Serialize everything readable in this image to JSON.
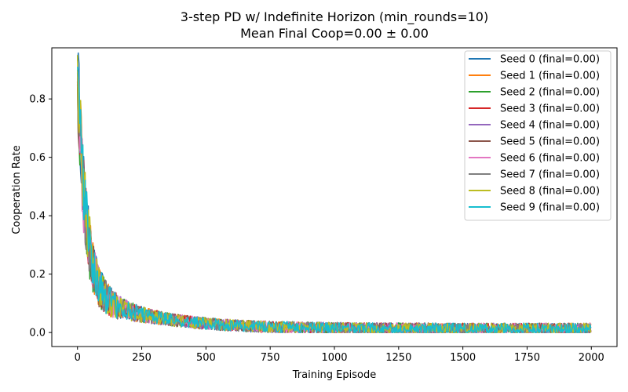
{
  "chart_data": {
    "type": "line",
    "title": "3-step PD w/ Indefinite Horizon (min_rounds=10)",
    "subtitle": "Mean Final Coop=0.00 ± 0.00",
    "xlabel": "Training Episode",
    "ylabel": "Cooperation Rate",
    "xlim": [
      -100,
      2100
    ],
    "ylim": [
      -0.048,
      0.975
    ],
    "xticks": [
      0,
      250,
      500,
      750,
      1000,
      1250,
      1500,
      1750,
      2000
    ],
    "yticks": [
      0.0,
      0.2,
      0.4,
      0.6,
      0.8
    ],
    "ytick_labels": [
      "0.0",
      "0.2",
      "0.4",
      "0.6",
      "0.8"
    ],
    "grid": false,
    "legend_position": "top-right",
    "episodes": 2000,
    "series": [
      {
        "name": "Seed 0 (final=0.00)",
        "color": "#1f77b4",
        "start": 0.93,
        "final": 0.0
      },
      {
        "name": "Seed 1 (final=0.00)",
        "color": "#ff7f0e",
        "start": 0.9,
        "final": 0.0
      },
      {
        "name": "Seed 2 (final=0.00)",
        "color": "#2ca02c",
        "start": 0.85,
        "final": 0.0
      },
      {
        "name": "Seed 3 (final=0.00)",
        "color": "#d62728",
        "start": 0.88,
        "final": 0.0
      },
      {
        "name": "Seed 4 (final=0.00)",
        "color": "#9467bd",
        "start": 0.87,
        "final": 0.0
      },
      {
        "name": "Seed 5 (final=0.00)",
        "color": "#8c564b",
        "start": 0.86,
        "final": 0.0
      },
      {
        "name": "Seed 6 (final=0.00)",
        "color": "#e377c2",
        "start": 0.84,
        "final": 0.0
      },
      {
        "name": "Seed 7 (final=0.00)",
        "color": "#7f7f7f",
        "start": 0.89,
        "final": 0.0
      },
      {
        "name": "Seed 8 (final=0.00)",
        "color": "#bcbd22",
        "start": 0.95,
        "final": 0.0
      },
      {
        "name": "Seed 9 (final=0.00)",
        "color": "#17becf",
        "start": 0.91,
        "final": 0.0
      }
    ]
  }
}
